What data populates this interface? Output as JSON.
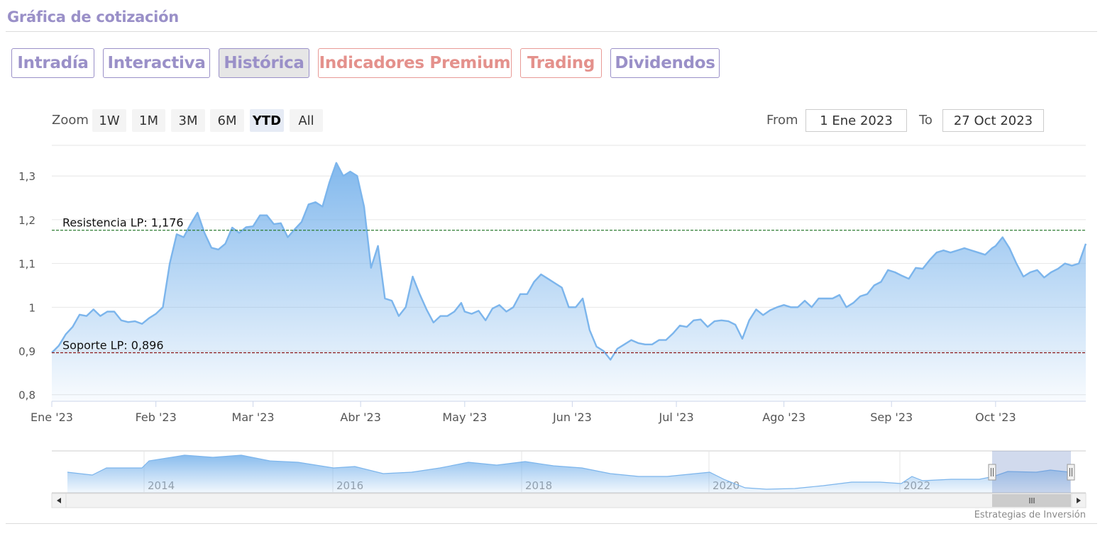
{
  "header": {
    "title": "Gráfica de cotización"
  },
  "tabs": [
    {
      "label": "Intradía",
      "premium": false,
      "active": false
    },
    {
      "label": "Interactiva",
      "premium": false,
      "active": false
    },
    {
      "label": "Histórica",
      "premium": false,
      "active": true
    },
    {
      "label": "Indicadores Premium",
      "premium": true,
      "active": false
    },
    {
      "label": "Trading",
      "premium": true,
      "active": false
    },
    {
      "label": "Dividendos",
      "premium": false,
      "active": false
    }
  ],
  "zoom": {
    "label": "Zoom",
    "buttons": [
      {
        "label": "1W",
        "active": false
      },
      {
        "label": "1M",
        "active": false
      },
      {
        "label": "3M",
        "active": false
      },
      {
        "label": "6M",
        "active": false
      },
      {
        "label": "YTD",
        "active": true
      },
      {
        "label": "All",
        "active": false
      }
    ]
  },
  "range": {
    "from_label": "From",
    "from_value": "1 Ene 2023",
    "to_label": "To",
    "to_value": "27 Oct 2023"
  },
  "credits": "Estrategias de Inversión",
  "colors": {
    "accent": "#9a90c8",
    "premium": "#e4918c",
    "line": "#7cb5ec",
    "resistance": "#2e7d32",
    "support": "#8b1a1a"
  },
  "chart_data": {
    "type": "area",
    "title": "",
    "xlabel": "",
    "ylabel": "",
    "ylim": [
      0.785,
      1.37
    ],
    "y_ticks": [
      "0,8",
      "0,9",
      "1",
      "1,1",
      "1,2",
      "1,3"
    ],
    "y_tick_values": [
      0.8,
      0.9,
      1.0,
      1.1,
      1.2,
      1.3
    ],
    "x_range": [
      "2023-01-02",
      "2023-10-27"
    ],
    "x_ticks": [
      {
        "label": "Ene '23",
        "date": "2023-01-02"
      },
      {
        "label": "Feb '23",
        "date": "2023-02-01"
      },
      {
        "label": "Mar '23",
        "date": "2023-03-01"
      },
      {
        "label": "Abr '23",
        "date": "2023-04-01"
      },
      {
        "label": "May '23",
        "date": "2023-05-01"
      },
      {
        "label": "Jun '23",
        "date": "2023-06-01"
      },
      {
        "label": "Jul '23",
        "date": "2023-07-01"
      },
      {
        "label": "Ago '23",
        "date": "2023-08-01"
      },
      {
        "label": "Sep '23",
        "date": "2023-09-01"
      },
      {
        "label": "Oct '23",
        "date": "2023-10-01"
      }
    ],
    "grid": true,
    "legend": "none",
    "lines": [
      {
        "label": "Resistencia LP: 1,176",
        "value": 1.176
      },
      {
        "label": "Soporte LP: 0,896",
        "value": 0.896
      }
    ],
    "series": [
      {
        "values": [
          [
            "2023-01-02",
            0.896
          ],
          [
            "2023-01-04",
            0.912
          ],
          [
            "2023-01-06",
            0.938
          ],
          [
            "2023-01-08",
            0.955
          ],
          [
            "2023-01-10",
            0.983
          ],
          [
            "2023-01-12",
            0.98
          ],
          [
            "2023-01-14",
            0.995
          ],
          [
            "2023-01-16",
            0.98
          ],
          [
            "2023-01-18",
            0.99
          ],
          [
            "2023-01-20",
            0.99
          ],
          [
            "2023-01-22",
            0.97
          ],
          [
            "2023-01-24",
            0.966
          ],
          [
            "2023-01-26",
            0.968
          ],
          [
            "2023-01-28",
            0.962
          ],
          [
            "2023-01-30",
            0.975
          ],
          [
            "2023-02-01",
            0.985
          ],
          [
            "2023-02-03",
            1.0
          ],
          [
            "2023-02-05",
            1.1
          ],
          [
            "2023-02-07",
            1.167
          ],
          [
            "2023-02-09",
            1.16
          ],
          [
            "2023-02-11",
            1.19
          ],
          [
            "2023-02-13",
            1.216
          ],
          [
            "2023-02-15",
            1.17
          ],
          [
            "2023-02-17",
            1.136
          ],
          [
            "2023-02-19",
            1.132
          ],
          [
            "2023-02-21",
            1.145
          ],
          [
            "2023-02-23",
            1.182
          ],
          [
            "2023-02-25",
            1.17
          ],
          [
            "2023-02-27",
            1.183
          ],
          [
            "2023-03-01",
            1.185
          ],
          [
            "2023-03-03",
            1.21
          ],
          [
            "2023-03-05",
            1.21
          ],
          [
            "2023-03-07",
            1.19
          ],
          [
            "2023-03-09",
            1.192
          ],
          [
            "2023-03-11",
            1.16
          ],
          [
            "2023-03-13",
            1.178
          ],
          [
            "2023-03-15",
            1.195
          ],
          [
            "2023-03-17",
            1.235
          ],
          [
            "2023-03-19",
            1.24
          ],
          [
            "2023-03-21",
            1.23
          ],
          [
            "2023-03-23",
            1.285
          ],
          [
            "2023-03-25",
            1.33
          ],
          [
            "2023-03-27",
            1.3
          ],
          [
            "2023-03-29",
            1.31
          ],
          [
            "2023-03-31",
            1.3
          ],
          [
            "2023-04-02",
            1.23
          ],
          [
            "2023-04-04",
            1.09
          ],
          [
            "2023-04-06",
            1.14
          ],
          [
            "2023-04-08",
            1.02
          ],
          [
            "2023-04-10",
            1.015
          ],
          [
            "2023-04-12",
            0.98
          ],
          [
            "2023-04-14",
            1.0
          ],
          [
            "2023-04-16",
            1.07
          ],
          [
            "2023-04-18",
            1.03
          ],
          [
            "2023-04-20",
            0.995
          ],
          [
            "2023-04-22",
            0.965
          ],
          [
            "2023-04-24",
            0.98
          ],
          [
            "2023-04-26",
            0.98
          ],
          [
            "2023-04-28",
            0.99
          ],
          [
            "2023-04-30",
            1.01
          ],
          [
            "2023-05-01",
            0.99
          ],
          [
            "2023-05-03",
            0.985
          ],
          [
            "2023-05-05",
            0.992
          ],
          [
            "2023-05-07",
            0.97
          ],
          [
            "2023-05-09",
            0.997
          ],
          [
            "2023-05-11",
            1.005
          ],
          [
            "2023-05-13",
            0.99
          ],
          [
            "2023-05-15",
            1.0
          ],
          [
            "2023-05-17",
            1.03
          ],
          [
            "2023-05-19",
            1.03
          ],
          [
            "2023-05-21",
            1.058
          ],
          [
            "2023-05-23",
            1.075
          ],
          [
            "2023-05-25",
            1.065
          ],
          [
            "2023-05-27",
            1.055
          ],
          [
            "2023-05-29",
            1.045
          ],
          [
            "2023-05-31",
            1.0
          ],
          [
            "2023-06-02",
            1.0
          ],
          [
            "2023-06-04",
            1.02
          ],
          [
            "2023-06-06",
            0.948
          ],
          [
            "2023-06-08",
            0.91
          ],
          [
            "2023-06-10",
            0.9
          ],
          [
            "2023-06-12",
            0.88
          ],
          [
            "2023-06-14",
            0.905
          ],
          [
            "2023-06-16",
            0.915
          ],
          [
            "2023-06-18",
            0.925
          ],
          [
            "2023-06-20",
            0.918
          ],
          [
            "2023-06-22",
            0.915
          ],
          [
            "2023-06-24",
            0.915
          ],
          [
            "2023-06-26",
            0.925
          ],
          [
            "2023-06-28",
            0.925
          ],
          [
            "2023-06-30",
            0.94
          ],
          [
            "2023-07-02",
            0.958
          ],
          [
            "2023-07-04",
            0.955
          ],
          [
            "2023-07-06",
            0.97
          ],
          [
            "2023-07-08",
            0.972
          ],
          [
            "2023-07-10",
            0.955
          ],
          [
            "2023-07-12",
            0.968
          ],
          [
            "2023-07-14",
            0.97
          ],
          [
            "2023-07-16",
            0.968
          ],
          [
            "2023-07-18",
            0.96
          ],
          [
            "2023-07-20",
            0.928
          ],
          [
            "2023-07-22",
            0.97
          ],
          [
            "2023-07-24",
            0.995
          ],
          [
            "2023-07-26",
            0.982
          ],
          [
            "2023-07-28",
            0.993
          ],
          [
            "2023-07-30",
            1.0
          ],
          [
            "2023-08-01",
            1.005
          ],
          [
            "2023-08-03",
            1.0
          ],
          [
            "2023-08-05",
            1.0
          ],
          [
            "2023-08-07",
            1.015
          ],
          [
            "2023-08-09",
            1.0
          ],
          [
            "2023-08-11",
            1.02
          ],
          [
            "2023-08-13",
            1.02
          ],
          [
            "2023-08-15",
            1.02
          ],
          [
            "2023-08-17",
            1.028
          ],
          [
            "2023-08-19",
            1.0
          ],
          [
            "2023-08-21",
            1.01
          ],
          [
            "2023-08-23",
            1.025
          ],
          [
            "2023-08-25",
            1.03
          ],
          [
            "2023-08-27",
            1.05
          ],
          [
            "2023-08-29",
            1.058
          ],
          [
            "2023-08-31",
            1.085
          ],
          [
            "2023-09-02",
            1.08
          ],
          [
            "2023-09-04",
            1.072
          ],
          [
            "2023-09-06",
            1.065
          ],
          [
            "2023-09-08",
            1.09
          ],
          [
            "2023-09-10",
            1.088
          ],
          [
            "2023-09-12",
            1.108
          ],
          [
            "2023-09-14",
            1.125
          ],
          [
            "2023-09-16",
            1.13
          ],
          [
            "2023-09-18",
            1.125
          ],
          [
            "2023-09-20",
            1.13
          ],
          [
            "2023-09-22",
            1.135
          ],
          [
            "2023-09-24",
            1.13
          ],
          [
            "2023-09-26",
            1.125
          ],
          [
            "2023-09-28",
            1.12
          ],
          [
            "2023-09-30",
            1.135
          ],
          [
            "2023-10-01",
            1.14
          ],
          [
            "2023-10-03",
            1.16
          ],
          [
            "2023-10-05",
            1.135
          ],
          [
            "2023-10-07",
            1.1
          ],
          [
            "2023-10-09",
            1.07
          ],
          [
            "2023-10-11",
            1.08
          ],
          [
            "2023-10-13",
            1.085
          ],
          [
            "2023-10-15",
            1.068
          ],
          [
            "2023-10-17",
            1.08
          ],
          [
            "2023-10-19",
            1.088
          ],
          [
            "2023-10-21",
            1.1
          ],
          [
            "2023-10-23",
            1.095
          ],
          [
            "2023-10-25",
            1.1
          ],
          [
            "2023-10-27",
            1.145
          ]
        ]
      }
    ]
  },
  "navigator": {
    "labels": [
      "2014",
      "2016",
      "2018",
      "2020",
      "2022"
    ]
  }
}
